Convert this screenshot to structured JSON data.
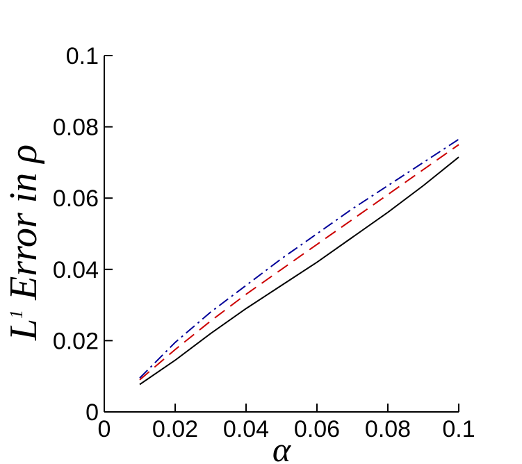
{
  "chart_data": {
    "type": "line",
    "x": [
      0.01,
      0.02,
      0.03,
      0.04,
      0.05,
      0.06,
      0.07,
      0.08,
      0.09,
      0.1
    ],
    "series": [
      {
        "color": "#000000",
        "dash": "solid",
        "values": [
          0.0077,
          0.0145,
          0.022,
          0.029,
          0.0355,
          0.042,
          0.049,
          0.056,
          0.0635,
          0.0715
        ]
      },
      {
        "color": "#cc0000",
        "dash": "dashed",
        "values": [
          0.009,
          0.0175,
          0.0255,
          0.033,
          0.04,
          0.047,
          0.054,
          0.061,
          0.068,
          0.075
        ]
      },
      {
        "color": "#000099",
        "dash": "dashdot",
        "values": [
          0.0095,
          0.0195,
          0.028,
          0.0355,
          0.043,
          0.05,
          0.057,
          0.0635,
          0.07,
          0.0765
        ]
      }
    ],
    "xlim": [
      0,
      0.1
    ],
    "xticks": [
      0,
      0.02,
      0.04,
      0.06,
      0.08,
      0.1
    ],
    "ylim": [
      0,
      0.1
    ],
    "yticks": [
      0,
      0.02,
      0.04,
      0.06,
      0.08,
      0.1
    ],
    "xlabel": "α",
    "ylabel_parts": [
      "L",
      "1",
      "Error in ρ"
    ]
  }
}
